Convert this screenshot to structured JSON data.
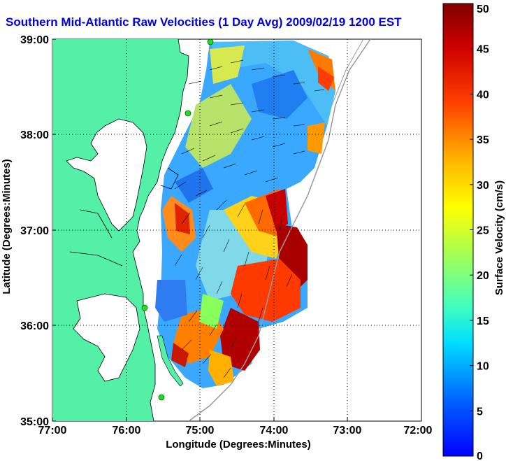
{
  "title": "Southern Mid-Atlantic Raw Velocities (1 Day Avg) 2009/02/19 1200 EST",
  "xlabel": "Longitude (Degrees:Minutes)",
  "ylabel": "Latitude (Degrees:Minutes)",
  "x_ticks": [
    "77:00",
    "76:00",
    "75:00",
    "74:00",
    "73:00",
    "72:00"
  ],
  "y_ticks": [
    "39:00",
    "38:00",
    "37:00",
    "36:00",
    "35:00"
  ],
  "colorbar": {
    "label": "Surface Velocity (cm/s)",
    "ticks": [
      "0",
      "5",
      "10",
      "15",
      "20",
      "25",
      "30",
      "35",
      "40",
      "45",
      "50"
    ],
    "min": 0,
    "max": 50
  },
  "colors": {
    "land": "#55f0a8",
    "title": "#0000ee",
    "station": "#22dd22"
  }
}
